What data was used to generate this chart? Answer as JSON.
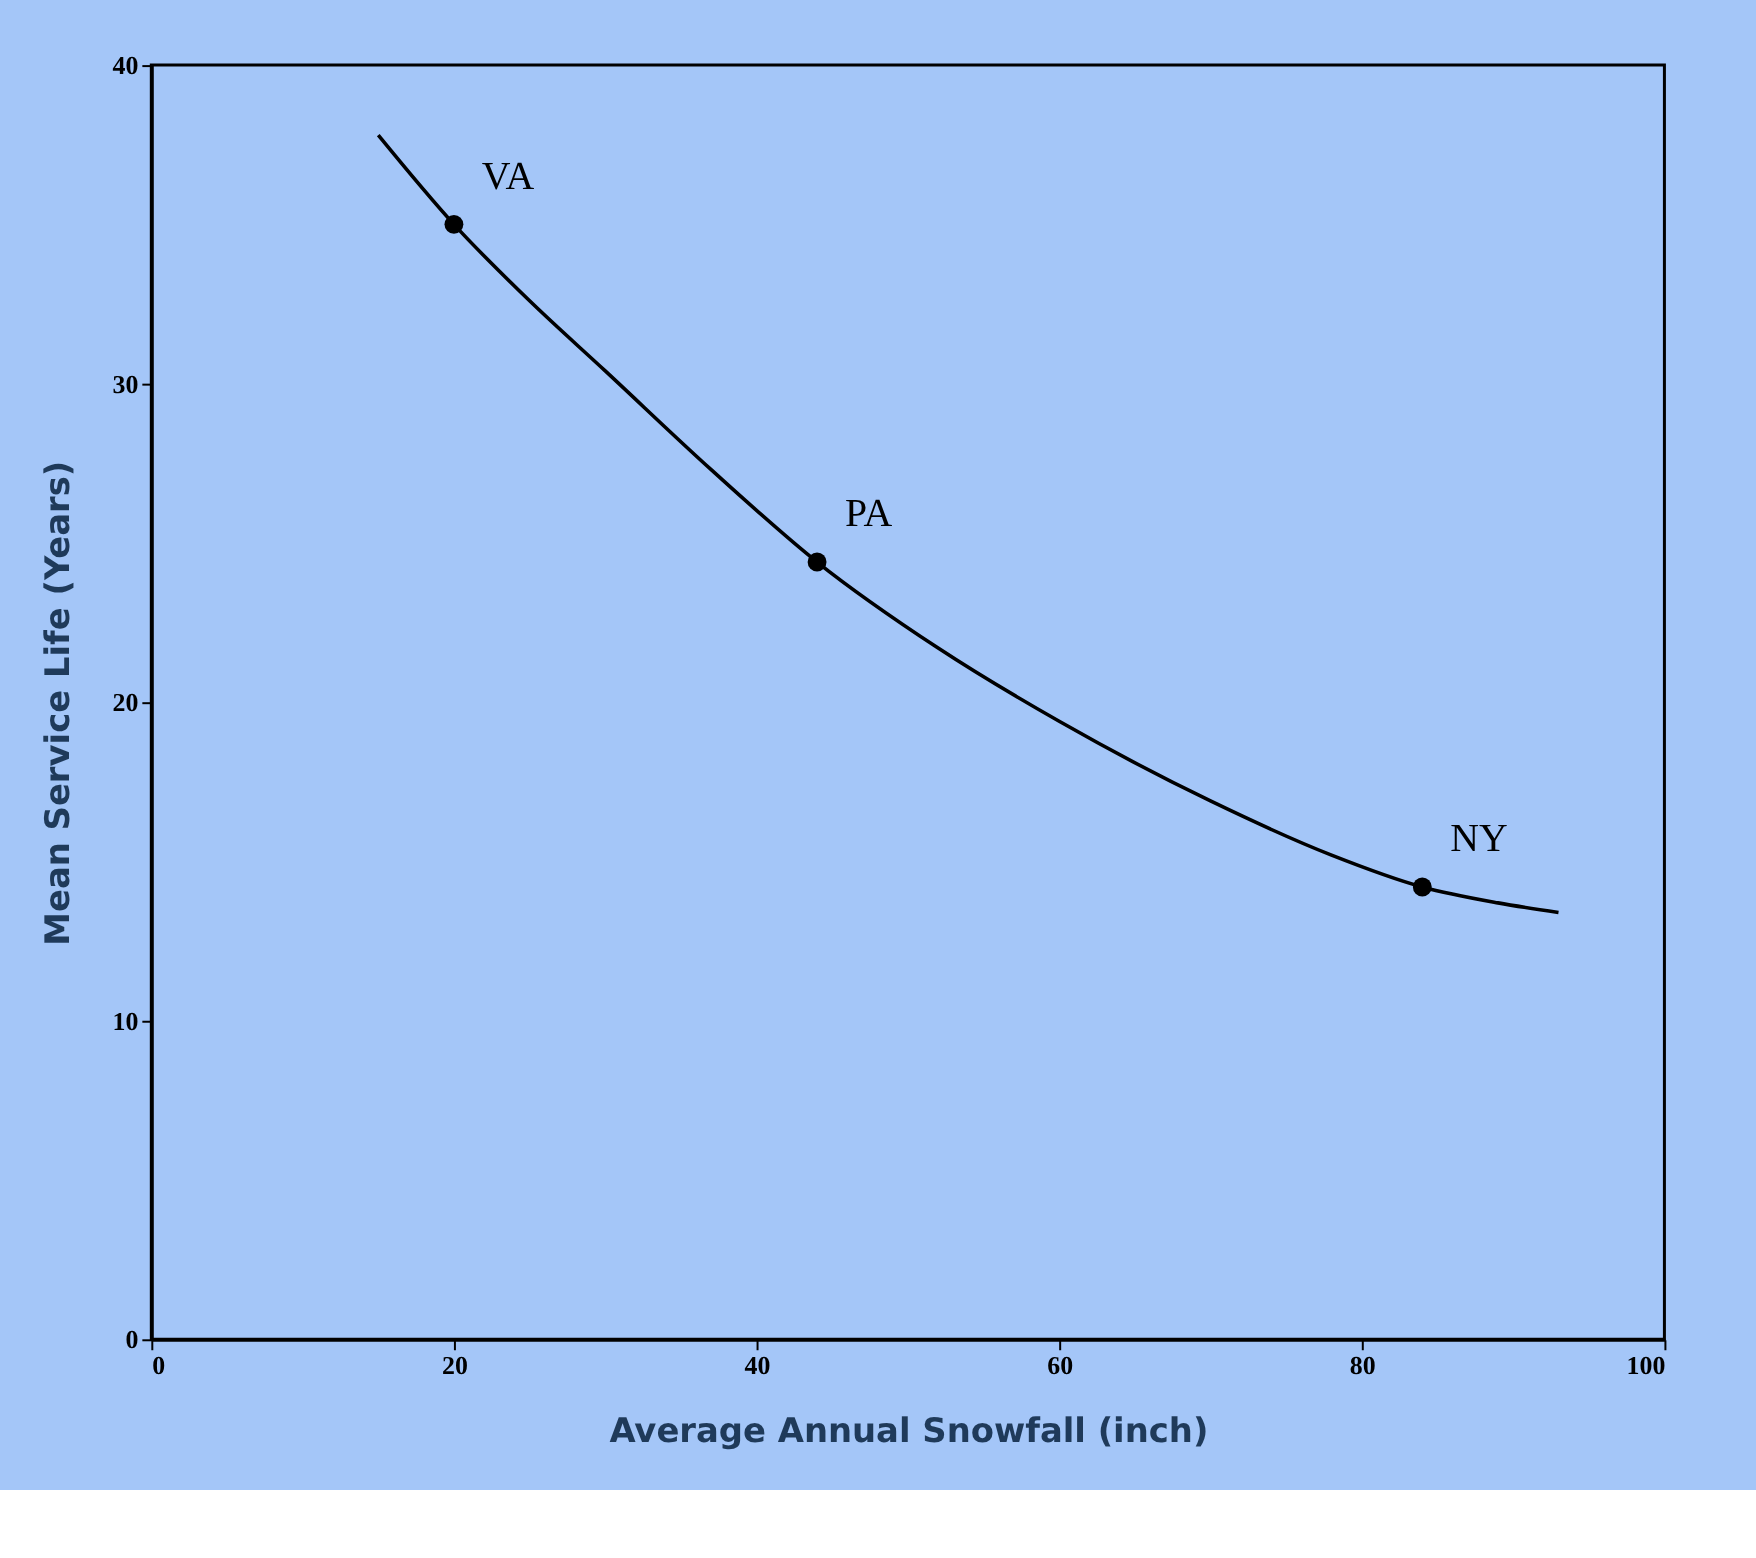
{
  "chart_data": {
    "type": "scatter",
    "xlabel": "Average Annual Snowfall (inch)",
    "ylabel": "Mean Service Life (Years)",
    "xlim": [
      0,
      100
    ],
    "ylim": [
      0,
      40
    ],
    "xticks": [
      0,
      20,
      40,
      60,
      80,
      100
    ],
    "yticks": [
      0,
      10,
      20,
      30,
      40
    ],
    "grid": false,
    "series": [
      {
        "marker": "circle",
        "color": "#000000",
        "x": [
          20,
          44,
          84
        ],
        "values": [
          35,
          24.4,
          14.2
        ]
      },
      {
        "type": "line",
        "color": "#000000",
        "x": [
          15,
          20,
          25,
          30,
          37,
          44,
          52,
          60,
          70,
          78,
          84,
          89,
          93
        ],
        "values": [
          37.8,
          35,
          32.6,
          30.4,
          27.3,
          24.4,
          21.7,
          19.4,
          16.9,
          15.2,
          14.2,
          13.7,
          13.4
        ]
      }
    ],
    "annotations": [
      {
        "text": "VA",
        "x": 20,
        "y": 35
      },
      {
        "text": "PA",
        "x": 44,
        "y": 24.4
      },
      {
        "text": "NY",
        "x": 84,
        "y": 14.2
      }
    ]
  }
}
